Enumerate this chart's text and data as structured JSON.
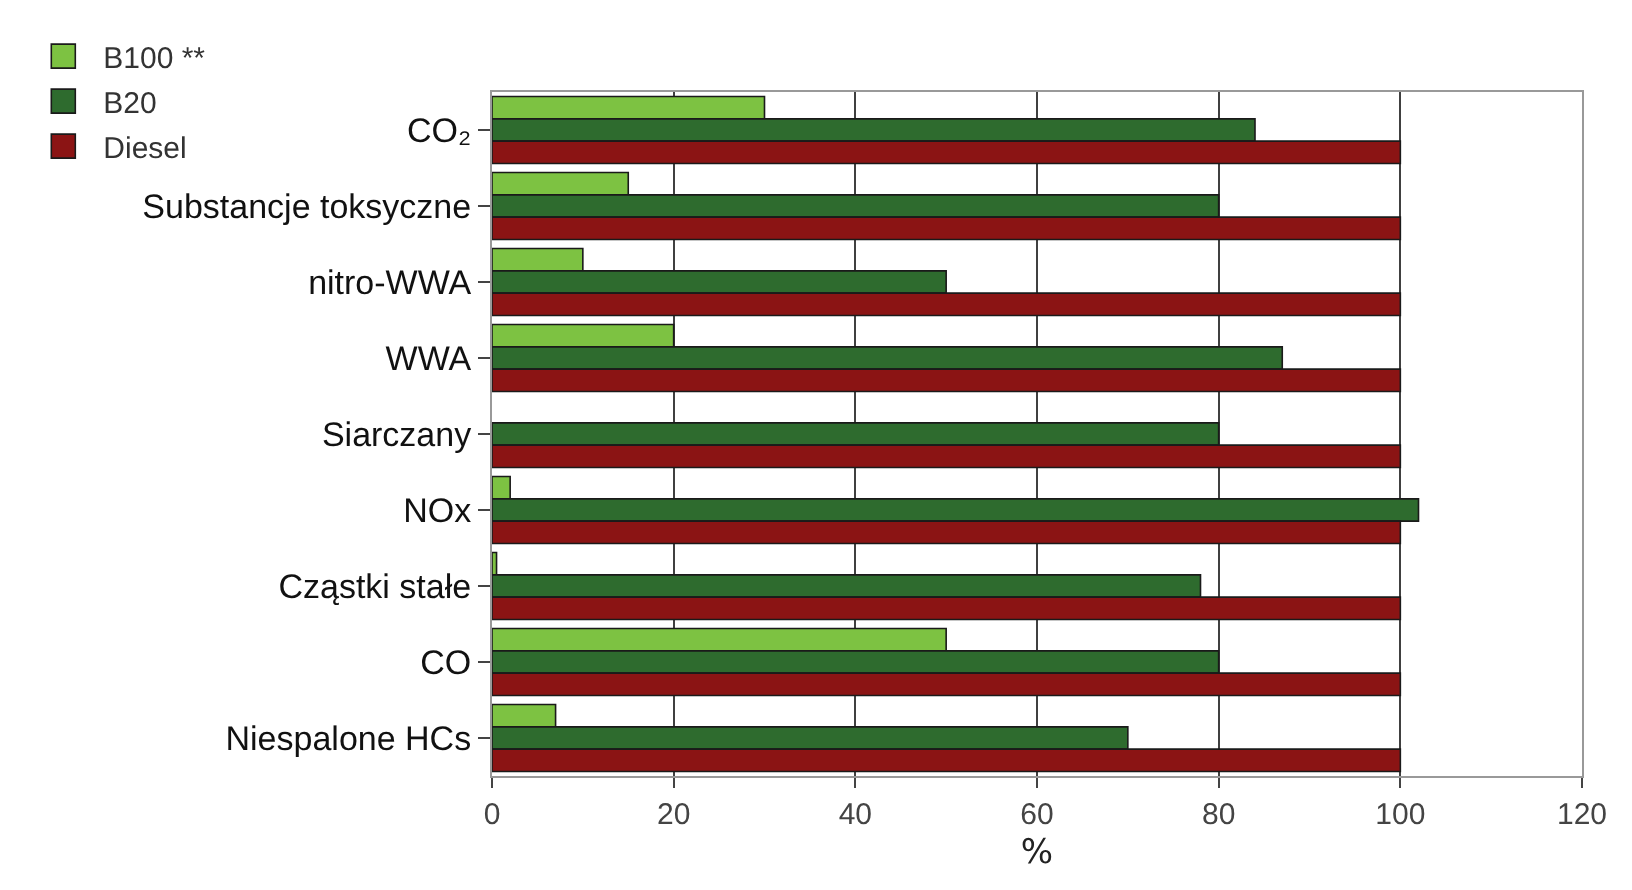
{
  "chart_data": {
    "type": "bar",
    "orientation": "horizontal",
    "xlabel": "%",
    "categories": [
      "CO₂",
      "Substancje toksyczne",
      "nitro-WWA",
      "WWA",
      "Siarczany",
      "NOx",
      "Cząstki stałe",
      "CO",
      "Niespalone HCs"
    ],
    "series": [
      {
        "name": "B100 **",
        "color": "#7dc242",
        "values": [
          30,
          15,
          10,
          20,
          null,
          2,
          0.5,
          50,
          7
        ]
      },
      {
        "name": "B20",
        "color": "#2e6b2e",
        "values": [
          84,
          80,
          50,
          87,
          80,
          102,
          78,
          80,
          70
        ]
      },
      {
        "name": "Diesel",
        "color": "#8b1414",
        "values": [
          100,
          100,
          100,
          100,
          100,
          100,
          100,
          100,
          100
        ]
      }
    ],
    "xlim": [
      0,
      120
    ],
    "xticks": [
      0,
      20,
      40,
      60,
      80,
      100,
      120
    ],
    "grid": "x",
    "legend": "top left"
  }
}
